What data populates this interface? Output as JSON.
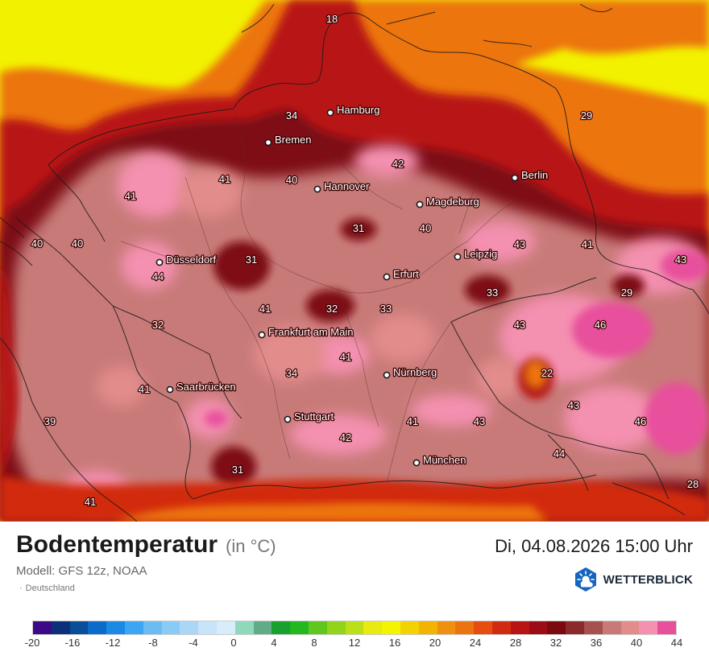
{
  "map": {
    "cities": [
      {
        "name": "Hamburg"
      },
      {
        "name": "Bremen"
      },
      {
        "name": "Berlin"
      },
      {
        "name": "Hannover"
      },
      {
        "name": "Magdeburg"
      },
      {
        "name": "Leipzig"
      },
      {
        "name": "Düsseldorf"
      },
      {
        "name": "Erfurt"
      },
      {
        "name": "Frankfurt am Main"
      },
      {
        "name": "Nürnberg"
      },
      {
        "name": "Saarbrücken"
      },
      {
        "name": "Stuttgart"
      },
      {
        "name": "München"
      }
    ],
    "values": [
      "18",
      "34",
      "29",
      "42",
      "41",
      "40",
      "41",
      "31",
      "40",
      "40",
      "40",
      "44",
      "31",
      "43",
      "41",
      "43",
      "33",
      "29",
      "41",
      "32",
      "33",
      "32",
      "43",
      "46",
      "41",
      "22",
      "34",
      "41",
      "43",
      "39",
      "41",
      "42",
      "46",
      "43",
      "31",
      "44",
      "41",
      "28"
    ]
  },
  "title": "Bodentemperatur",
  "unit": "(in °C)",
  "date": "Di, 04.08.2026 15:00 Uhr",
  "model": "Modell: GFS 12z, NOAA",
  "region": "Deutschland",
  "logo_text": "WETTERBLICK",
  "colors": {
    "water_cool": "#f2f200",
    "hot_core": "#7e0a12",
    "rose": "#c87a78",
    "pink": "#f48fa7",
    "magenta": "#e8509c"
  },
  "legend": {
    "colors": [
      "#3c0a86",
      "#0c2f7a",
      "#0a4d98",
      "#0a6cc8",
      "#1a8ae6",
      "#3ca6f2",
      "#6cbcf4",
      "#8acbf5",
      "#aad7f6",
      "#c8e4f8",
      "#d8ecfa",
      "#90d8bc",
      "#60ac86",
      "#18a030",
      "#22b81e",
      "#60c81c",
      "#92d41a",
      "#bce018",
      "#e8ea10",
      "#f4f400",
      "#f2d200",
      "#f2b400",
      "#f09010",
      "#ec7410",
      "#e64e10",
      "#d22a10",
      "#b81414",
      "#9c0c14",
      "#7a0a10",
      "#8a2a2a",
      "#a65050",
      "#c87a78",
      "#e28c8c",
      "#f490b0",
      "#e8509c"
    ],
    "labels": [
      "-20",
      "-16",
      "-12",
      "-8",
      "-4",
      "0",
      "4",
      "8",
      "12",
      "16",
      "20",
      "24",
      "28",
      "32",
      "36",
      "40",
      "44"
    ]
  }
}
